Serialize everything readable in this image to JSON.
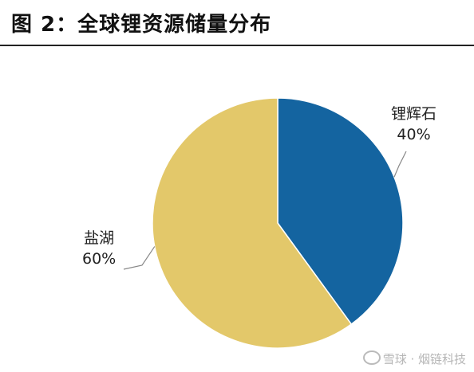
{
  "figure_title": "图 2：全球锂资源储量分布",
  "colors": {
    "spodumene": "#1464A0",
    "salt_lake": "#E3C86A",
    "leader_line": "#888888"
  },
  "watermark": {
    "text": "雪球 · 烟链科技"
  },
  "chart_data": {
    "type": "pie",
    "title": "全球锂资源储量分布",
    "slices": [
      {
        "label": "锂辉石",
        "percent_label": "40%",
        "value": 40,
        "color": "#1464A0"
      },
      {
        "label": "盐湖",
        "percent_label": "60%",
        "value": 60,
        "color": "#E3C86A"
      }
    ],
    "start_angle": "12 o'clock",
    "direction": "clockwise"
  }
}
